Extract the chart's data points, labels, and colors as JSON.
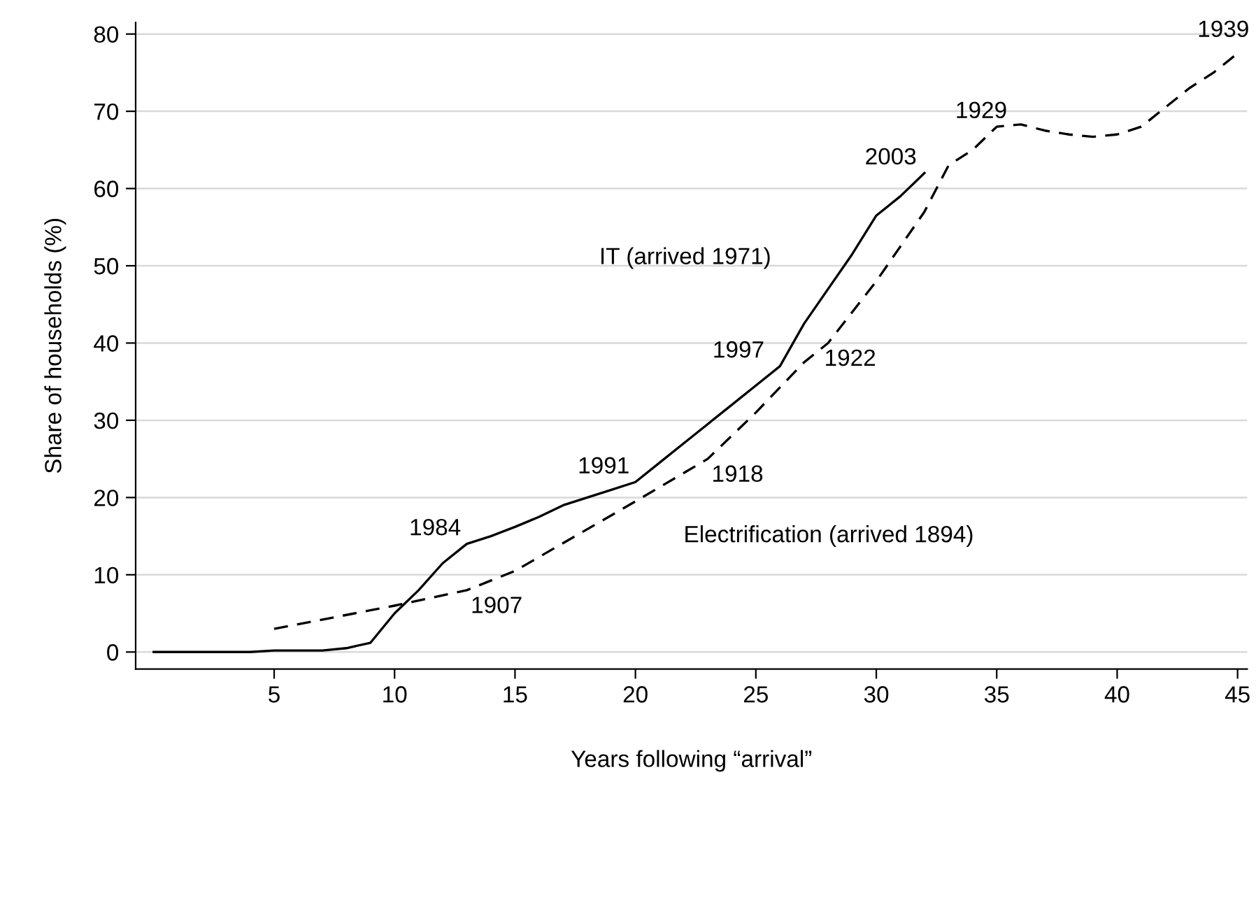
{
  "chart_data": {
    "type": "line",
    "xlabel": "Years following “arrival”",
    "ylabel": "Share of households (%)",
    "xlim": [
      -0.75,
      45.4
    ],
    "ylim": [
      -2.2,
      81.5
    ],
    "xticks": [
      5,
      10,
      15,
      20,
      25,
      30,
      35,
      40,
      45
    ],
    "yticks": [
      0,
      10,
      20,
      30,
      40,
      50,
      60,
      70,
      80
    ],
    "grid": "y",
    "legend": false,
    "marker": "none",
    "series": [
      {
        "name": "IT (arrived 1971)",
        "color": "#000000",
        "line_style": "solid",
        "x": [
          0,
          4,
          5,
          7,
          8,
          9,
          10,
          11,
          12,
          13,
          14,
          15,
          16,
          17,
          18,
          19,
          20,
          21,
          22,
          23,
          24,
          25,
          26,
          27,
          28,
          29,
          30,
          31,
          32
        ],
        "values": [
          0,
          0,
          0.2,
          0.2,
          0.5,
          1.2,
          5,
          8,
          11.5,
          14,
          15,
          16.2,
          17.5,
          19,
          20,
          21,
          22,
          24.5,
          27,
          29.5,
          32,
          34.5,
          37,
          42.5,
          47,
          51.5,
          56.5,
          59,
          62
        ]
      },
      {
        "name": "Electrification (arrived 1894)",
        "color": "#000000",
        "line_style": "dashed",
        "x": [
          5,
          10,
          13,
          15,
          20,
          23,
          25,
          27,
          28,
          30,
          32,
          33,
          34,
          35,
          36,
          37,
          38,
          39,
          40,
          41,
          42,
          43,
          44,
          45
        ],
        "values": [
          3,
          6,
          8,
          10.5,
          19.5,
          25,
          31,
          37.5,
          40,
          48,
          57,
          63,
          65,
          68,
          68.3,
          67.5,
          67,
          66.7,
          67,
          68,
          70.5,
          73,
          75,
          77.5
        ]
      }
    ],
    "annotations": [
      {
        "text": "1984",
        "x": 13,
        "y": 14
      },
      {
        "text": "1991",
        "x": 20,
        "y": 22
      },
      {
        "text": "1997",
        "x": 26,
        "y": 37
      },
      {
        "text": "2003",
        "x": 32,
        "y": 62
      },
      {
        "text": "1907",
        "x": 13,
        "y": 8
      },
      {
        "text": "1918",
        "x": 23,
        "y": 25
      },
      {
        "text": "1922",
        "x": 28,
        "y": 40
      },
      {
        "text": "1929",
        "x": 35,
        "y": 68
      },
      {
        "text": "1939",
        "x": 45,
        "y": 77.5
      }
    ]
  }
}
